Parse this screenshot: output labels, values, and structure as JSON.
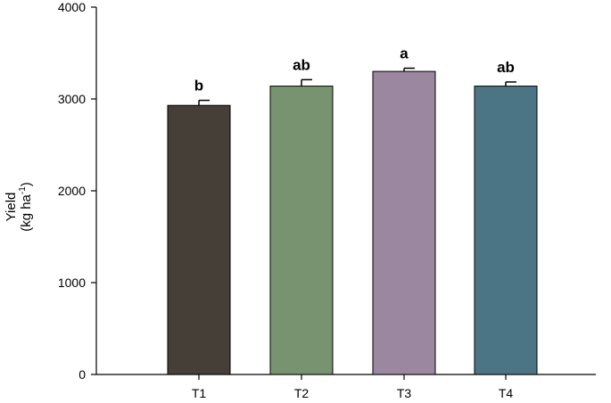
{
  "chart_data": {
    "type": "bar",
    "categories": [
      "T1",
      "T2",
      "T3",
      "T4"
    ],
    "values": [
      2930,
      3140,
      3300,
      3140
    ],
    "errors": [
      55,
      70,
      35,
      45
    ],
    "significance_labels": [
      "b",
      "ab",
      "a",
      "ab"
    ],
    "colors": [
      "#463f38",
      "#789370",
      "#9c87a0",
      "#4b7585"
    ],
    "title": "",
    "xlabel": "",
    "ylabel_line1": "Yield",
    "ylabel_line2_prefix": "(kg ha",
    "ylabel_line2_sup": "-1",
    "ylabel_line2_suffix": ")",
    "ylim": [
      0,
      4000
    ],
    "yticks": [
      "0",
      "1000",
      "2000",
      "3000",
      "4000"
    ],
    "grid": false,
    "legend": false
  }
}
